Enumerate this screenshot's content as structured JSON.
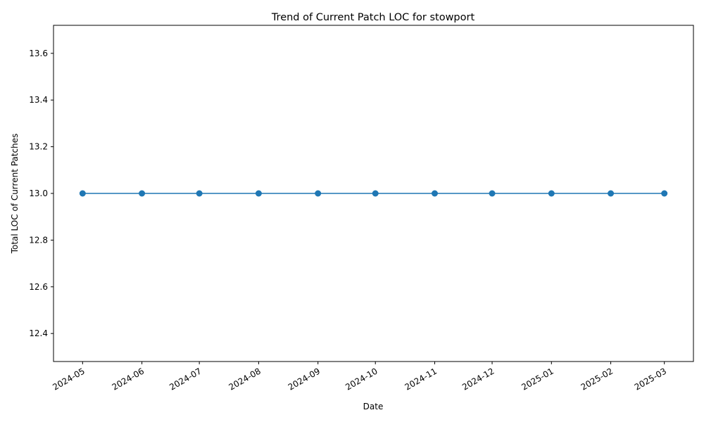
{
  "chart_data": {
    "type": "line",
    "title": "Trend of Current Patch LOC for stowport",
    "xlabel": "Date",
    "ylabel": "Total LOC of Current Patches",
    "x": [
      "2024-05-01",
      "2024-06-01",
      "2024-07-01",
      "2024-08-01",
      "2024-09-01",
      "2024-10-01",
      "2024-11-01",
      "2024-12-01",
      "2025-01-01",
      "2025-02-01",
      "2025-03-01"
    ],
    "series": [
      {
        "values": [
          13,
          13,
          13,
          13,
          13,
          13,
          13,
          13,
          13,
          13,
          13
        ],
        "color": "#1f77b4",
        "marker": "circle"
      }
    ],
    "xticks": [
      "2024-05",
      "2024-06",
      "2024-07",
      "2024-08",
      "2024-09",
      "2024-10",
      "2024-11",
      "2024-12",
      "2025-01",
      "2025-02",
      "2025-03"
    ],
    "yticks": [
      "12.4",
      "12.6",
      "12.8",
      "13.0",
      "13.2",
      "13.4",
      "13.6"
    ],
    "ylim": [
      12.28,
      13.72
    ],
    "grid": false,
    "legend": false
  }
}
